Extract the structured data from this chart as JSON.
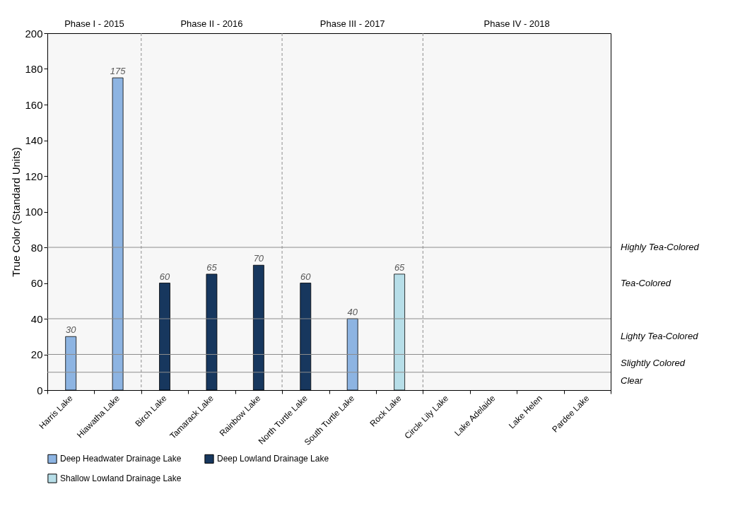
{
  "chart_data": {
    "type": "bar",
    "ylabel": "True Color (Standard Units)",
    "categories": [
      "Harris Lake",
      "Hiawatha Lake",
      "Birch Lake",
      "Tamarack Lake",
      "Rainbow Lake",
      "North Turtle Lake",
      "South Turtle Lake",
      "Rock Lake",
      "Circle Lily Lake",
      "Lake Adelaide",
      "Lake Helen",
      "Pardee Lake"
    ],
    "series": [
      {
        "name": "Deep Headwater Drainage Lake",
        "color": "#8db4e2",
        "values": [
          30,
          175,
          null,
          null,
          null,
          null,
          40,
          null,
          null,
          null,
          null,
          null
        ]
      },
      {
        "name": "Deep Lowland Drainage Lake",
        "color": "#17375e",
        "values": [
          null,
          null,
          60,
          65,
          70,
          60,
          null,
          null,
          null,
          null,
          null,
          null
        ]
      },
      {
        "name": "Shallow Lowland Drainage Lake",
        "color": "#b7dee8",
        "values": [
          null,
          null,
          null,
          null,
          null,
          null,
          null,
          65,
          null,
          null,
          null,
          null
        ]
      }
    ],
    "ylim": [
      0,
      200
    ],
    "yticks": [
      0,
      20,
      40,
      60,
      80,
      100,
      120,
      140,
      160,
      180,
      200
    ],
    "data_labels": true,
    "legend": "bottom",
    "ref_lines": [
      {
        "axis": "y",
        "value": 10,
        "color": "#8c8c8c"
      },
      {
        "axis": "y",
        "value": 20,
        "color": "#8c8c8c"
      },
      {
        "axis": "y",
        "value": 40,
        "color": "#8c8c8c"
      },
      {
        "axis": "y",
        "value": 80,
        "color": "#8c8c8c"
      }
    ],
    "annotations": [
      "Clear",
      "Slightly Colored",
      "Lighty Tea-Colored",
      "Tea-Colored",
      "Highly Tea-Colored"
    ],
    "bands": [
      {
        "axis": "x",
        "from": "Harris Lake",
        "to": "Hiawatha Lake",
        "label": "Phase I - 2015",
        "color": "#f7f7f7"
      },
      {
        "axis": "x",
        "from": "Birch Lake",
        "to": "Rainbow Lake",
        "label": "Phase II - 2016",
        "color": "#f7f7f7"
      },
      {
        "axis": "x",
        "from": "North Turtle Lake",
        "to": "Rock Lake",
        "label": "Phase III - 2017",
        "color": "#f7f7f7"
      },
      {
        "axis": "x",
        "from": "Circle Lily Lake",
        "to": "Pardee Lake",
        "label": "Phase IV  - 2018",
        "color": "#f7f7f7"
      }
    ]
  }
}
